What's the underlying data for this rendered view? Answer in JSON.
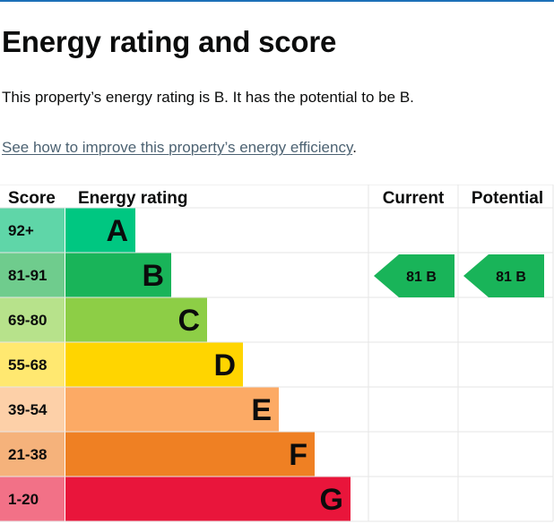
{
  "page": {
    "heading": "Energy rating and score",
    "summary": "This property’s energy rating is B. It has the potential to be B.",
    "link_text": "See how to improve this property’s energy efficiency",
    "link_suffix": "."
  },
  "chart_data": {
    "type": "table",
    "headers": {
      "score": "Score",
      "rating": "Energy rating",
      "current": "Current",
      "potential": "Potential"
    },
    "bands": [
      {
        "score": "92+",
        "letter": "A",
        "color": "#00c781",
        "score_bg": "#5fd6a8"
      },
      {
        "score": "81-91",
        "letter": "B",
        "color": "#19b459",
        "score_bg": "#6fcc8d"
      },
      {
        "score": "69-80",
        "letter": "C",
        "color": "#8dce46",
        "score_bg": "#b7e28b"
      },
      {
        "score": "55-68",
        "letter": "D",
        "color": "#ffd500",
        "score_bg": "#ffe870"
      },
      {
        "score": "39-54",
        "letter": "E",
        "color": "#fcaa65",
        "score_bg": "#fdd0a8"
      },
      {
        "score": "21-38",
        "letter": "F",
        "color": "#ef8023",
        "score_bg": "#f5b27b"
      },
      {
        "score": "1-20",
        "letter": "G",
        "color": "#e9153b",
        "score_bg": "#f27187"
      }
    ],
    "current": {
      "score": 81,
      "letter": "B",
      "band_index": 1,
      "label": "81 B",
      "color": "#19b459"
    },
    "potential": {
      "score": 81,
      "letter": "B",
      "band_index": 1,
      "label": "81 B",
      "color": "#19b459"
    }
  }
}
